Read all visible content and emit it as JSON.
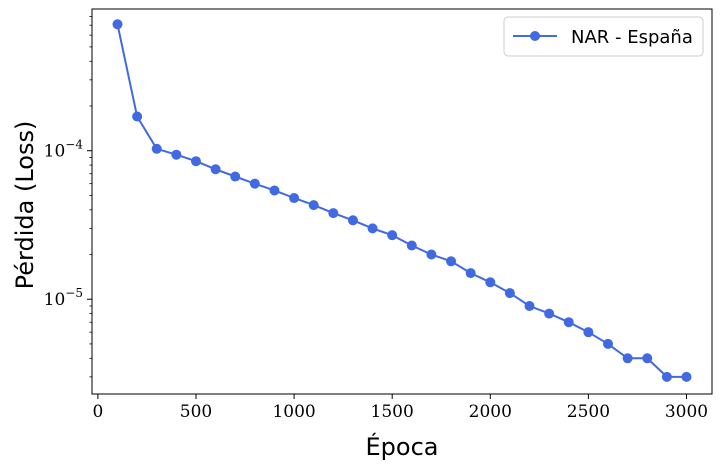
{
  "chart_data": {
    "type": "line",
    "title": "",
    "xlabel": "Época",
    "ylabel": "Pérdida (Loss)",
    "yscale": "log",
    "xlim": [
      -30,
      3130
    ],
    "ylim": [
      2.3e-06,
      0.0009
    ],
    "x_ticks": [
      0,
      500,
      1000,
      1500,
      2000,
      2500,
      3000
    ],
    "x_tick_labels": [
      "0",
      "500",
      "1000",
      "1500",
      "2000",
      "2500",
      "3000"
    ],
    "y_major_ticks": [
      {
        "value": 0.0001,
        "base": "10",
        "exp": "−4"
      },
      {
        "value": 1e-05,
        "base": "10",
        "exp": "−5"
      }
    ],
    "grid": false,
    "legend_position": "top-right",
    "series": [
      {
        "name": "NAR - España",
        "color": "#4169E1",
        "marker": "circle",
        "x": [
          100,
          200,
          300,
          400,
          500,
          600,
          700,
          800,
          900,
          1000,
          1100,
          1200,
          1300,
          1400,
          1500,
          1600,
          1700,
          1800,
          1900,
          2000,
          2100,
          2200,
          2300,
          2400,
          2500,
          2600,
          2700,
          2800,
          2900,
          3000
        ],
        "y": [
          0.00071,
          0.00017,
          0.000103,
          9.4e-05,
          8.5e-05,
          7.5e-05,
          6.7e-05,
          6e-05,
          5.4e-05,
          4.8e-05,
          4.3e-05,
          3.8e-05,
          3.4e-05,
          3e-05,
          2.7e-05,
          2.3e-05,
          2e-05,
          1.8e-05,
          1.5e-05,
          1.3e-05,
          1.1e-05,
          9e-06,
          8e-06,
          7e-06,
          6e-06,
          5e-06,
          4e-06,
          4e-06,
          3e-06,
          3e-06
        ]
      }
    ]
  }
}
